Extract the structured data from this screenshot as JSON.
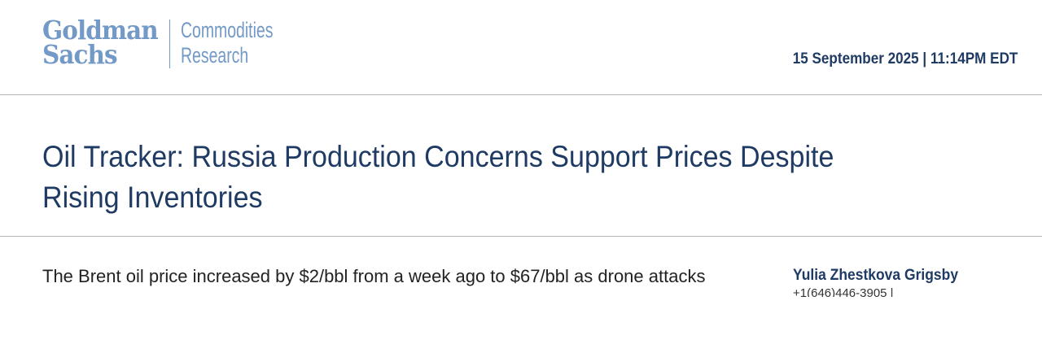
{
  "header": {
    "logo": {
      "brand_line1": "Goldman",
      "brand_line2": "Sachs",
      "unit_line1": "Commodities",
      "unit_line2": "Research"
    },
    "date": "15 September 2025 | 11:14PM EDT"
  },
  "title": "Oil Tracker: Russia Production Concerns Support Prices Despite Rising Inventories",
  "body": {
    "paragraph_first_line": "The Brent oil price increased by $2/bbl from a week ago to $67/bbl as drone attacks"
  },
  "author": {
    "name": "Yulia Zhestkova Grigsby",
    "phone": "+1(646)446-3905 |"
  },
  "colors": {
    "brand": "#7399c6",
    "title": "#1f3b63",
    "rule": "#b4b4b4"
  }
}
